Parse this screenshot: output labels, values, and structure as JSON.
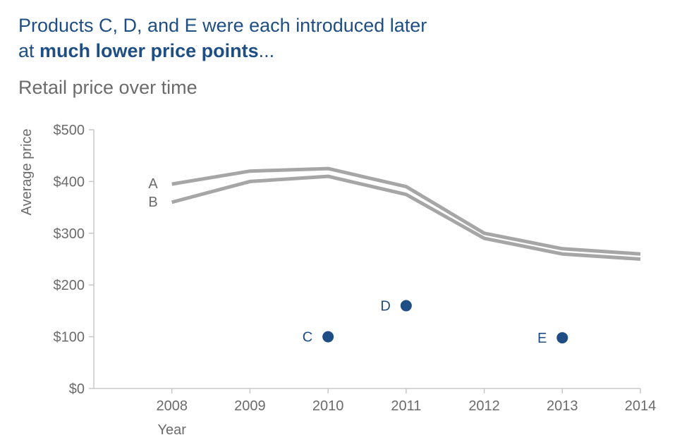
{
  "headline": {
    "line1": "Products C, D, and E were each introduced later",
    "line2_prefix": "at ",
    "line2_bold": "much lower price points",
    "line2_suffix": "..."
  },
  "subtitle": "Retail price over time",
  "colors": {
    "headline": "#1f4e85",
    "line_series": "#a6a6a6",
    "point_series": "#1f4e85",
    "axis": "#c8c8c8",
    "muted_text": "#6b6b6b"
  },
  "chart_data": {
    "type": "line",
    "xlabel": "Year",
    "ylabel": "Average price",
    "x": [
      2008,
      2009,
      2010,
      2011,
      2012,
      2013,
      2014
    ],
    "xlim": [
      2007,
      2014
    ],
    "ylim": [
      0,
      500
    ],
    "y_ticks": [
      0,
      100,
      200,
      300,
      400,
      500
    ],
    "y_tick_labels": [
      "$0",
      "$100",
      "$200",
      "$300",
      "$400",
      "$500"
    ],
    "grid": false,
    "legend": "none",
    "series": [
      {
        "name": "A",
        "style": "line",
        "x": [
          2008,
          2009,
          2010,
          2011,
          2012,
          2013,
          2014
        ],
        "values": [
          395,
          420,
          425,
          390,
          300,
          270,
          260
        ]
      },
      {
        "name": "B",
        "style": "line",
        "x": [
          2008,
          2009,
          2010,
          2011,
          2012,
          2013,
          2014
        ],
        "values": [
          360,
          400,
          410,
          375,
          290,
          260,
          250
        ]
      },
      {
        "name": "C",
        "style": "point",
        "x": [
          2010
        ],
        "values": [
          100
        ]
      },
      {
        "name": "D",
        "style": "point",
        "x": [
          2011
        ],
        "values": [
          160
        ]
      },
      {
        "name": "E",
        "style": "point",
        "x": [
          2013
        ],
        "values": [
          98
        ]
      }
    ]
  }
}
